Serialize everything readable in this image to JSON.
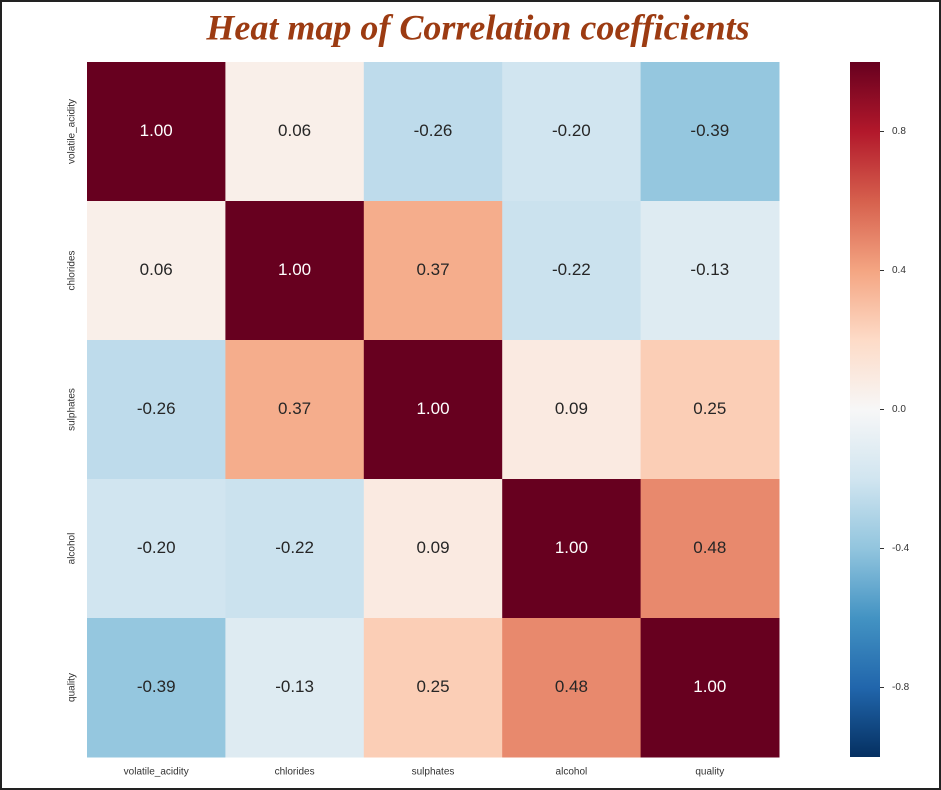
{
  "chart_data": {
    "type": "heatmap",
    "title": "Heat map of Correlation coefficients",
    "x": [
      "volatile_acidity",
      "chlorides",
      "sulphates",
      "alcohol",
      "quality"
    ],
    "y": [
      "volatile_acidity",
      "chlorides",
      "sulphates",
      "alcohol",
      "quality"
    ],
    "values": [
      [
        1.0,
        0.06,
        -0.26,
        -0.2,
        -0.39
      ],
      [
        0.06,
        1.0,
        0.37,
        -0.22,
        -0.13
      ],
      [
        -0.26,
        0.37,
        1.0,
        0.09,
        0.25
      ],
      [
        -0.2,
        -0.22,
        0.09,
        1.0,
        0.48
      ],
      [
        -0.39,
        -0.13,
        0.25,
        0.48,
        1.0
      ]
    ],
    "value_labels": [
      [
        "1.00",
        "0.06",
        "-0.26",
        "-0.20",
        "-0.39"
      ],
      [
        "0.06",
        "1.00",
        "0.37",
        "-0.22",
        "-0.13"
      ],
      [
        "-0.26",
        "0.37",
        "1.00",
        "0.09",
        "0.25"
      ],
      [
        "-0.20",
        "-0.22",
        "0.09",
        "1.00",
        "0.48"
      ],
      [
        "-0.39",
        "-0.13",
        "0.25",
        "0.48",
        "1.00"
      ]
    ],
    "zlim": [
      -1,
      1
    ],
    "zticks": [
      0.8,
      0.4,
      {
        "value": 0,
        "label": "0.0"
      },
      -0.4,
      -0.8
    ],
    "colorscale": [
      "#053061",
      "#2166ac",
      "#4393c3",
      "#92c5de",
      "#d1e5f0",
      "#f7f7f7",
      "#fddbc7",
      "#f4a582",
      "#d6604d",
      "#b2182b",
      "#67001f"
    ]
  }
}
